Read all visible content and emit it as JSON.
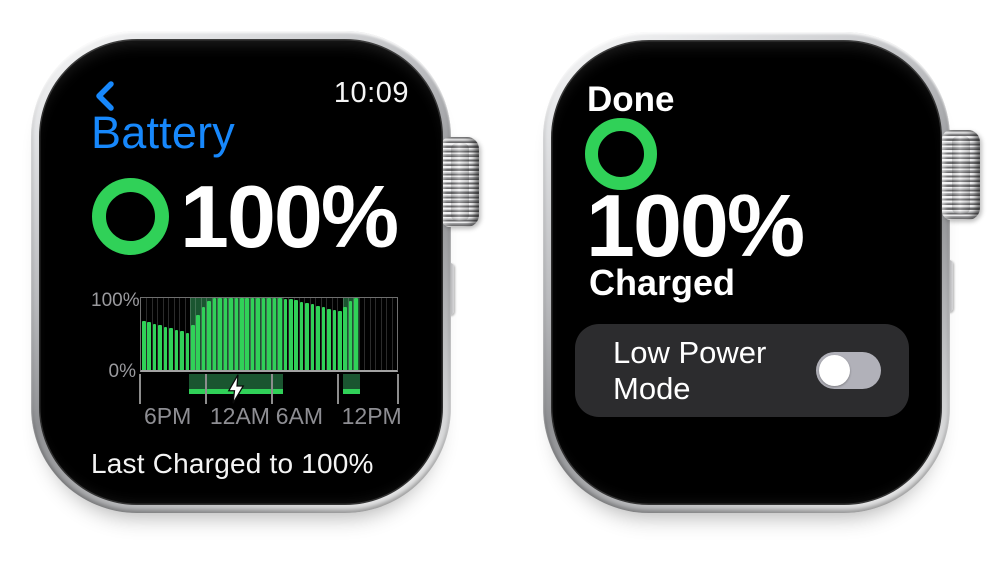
{
  "theme": {
    "blue": "#1788fc",
    "green": "#30d158",
    "card": "#2c2c2e",
    "track": "#b1b1b9",
    "label-gray": "#9a9a9e"
  },
  "left_watch": {
    "status": {
      "back_icon": "chevron-left",
      "time": "10:09"
    },
    "title": "Battery",
    "battery_percent": "100%",
    "footer": "Last Charged to 100%",
    "chart_data": {
      "type": "bar",
      "title": "Battery level over last 24 hours",
      "ylabel_top": "100%",
      "ylabel_bottom": "0%",
      "ylim": [
        0,
        100
      ],
      "grid": true,
      "interval_minutes": 30,
      "start_time": "6PM",
      "total_slots": 47,
      "x_tick_labels": [
        "6PM",
        "12AM",
        "6AM",
        "12PM"
      ],
      "x_tick_slots": [
        0,
        12,
        24,
        36
      ],
      "edge_tick_slots": [
        0,
        47
      ],
      "values": [
        68,
        66,
        64,
        62,
        60,
        58,
        56,
        54,
        52,
        62,
        76,
        88,
        96,
        100,
        100,
        100,
        100,
        100,
        100,
        100,
        100,
        100,
        100,
        100,
        100,
        100,
        99,
        98,
        97,
        95,
        93,
        91,
        89,
        87,
        85,
        84,
        82,
        88,
        96,
        100
      ],
      "charging_spans": [
        {
          "start": 9,
          "end": 25
        },
        {
          "start": 37,
          "end": 39
        }
      ],
      "bolt_icon": "lightning-bolt",
      "bolt_span_index": 0,
      "colors": {
        "bar": "#30d158",
        "charge_bg": "#1a5530",
        "charge_strip": "#30d158",
        "grid": "rgba(255,255,255,0.17)",
        "axis": "#6f6f6f",
        "tick": "#8d8d8d",
        "label": "#8e8e93"
      }
    }
  },
  "right_watch": {
    "done_label": "Done",
    "battery_percent": "100%",
    "charged_label": "Charged",
    "low_power": {
      "label": "Low Power Mode",
      "toggle_state": "off"
    }
  }
}
